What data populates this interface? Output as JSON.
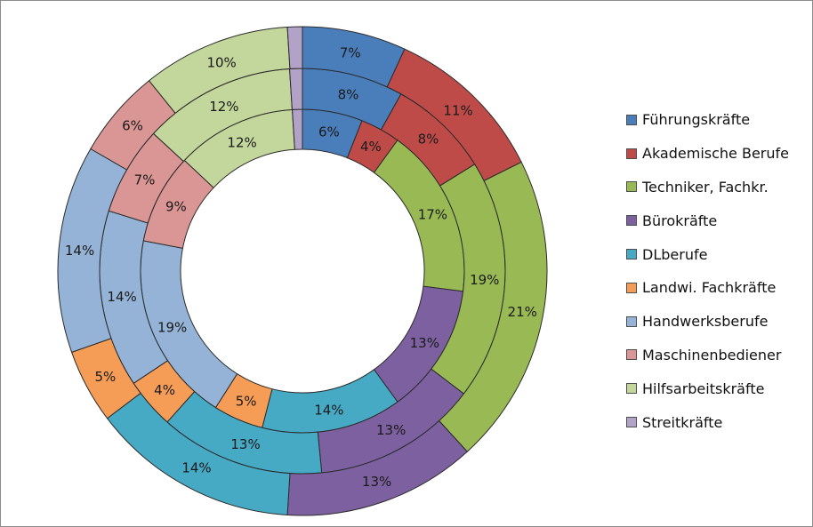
{
  "chart_data": {
    "type": "donut",
    "rings": [
      {
        "ring": "inner",
        "values": [
          6,
          4,
          17,
          13,
          14,
          5,
          19,
          9,
          12,
          1
        ]
      },
      {
        "ring": "middle",
        "values": [
          8,
          8,
          19,
          13,
          13,
          4,
          14,
          7,
          12,
          1
        ]
      },
      {
        "ring": "outer",
        "values": [
          7,
          11,
          21,
          13,
          14,
          5,
          14,
          6,
          10,
          1
        ]
      }
    ],
    "categories": [
      "Führungskräfte",
      "Akademische Berufe",
      "Techniker, Fachkr.",
      "Bürokräfte",
      "DLberufe",
      "Landwi. Fachkräfte",
      "Handwerksberufe",
      "Maschinenbediener",
      "Hilfsarbeitskräfte",
      "Streitkräfte"
    ],
    "colors": [
      "#4a7ebb",
      "#be4b48",
      "#98b954",
      "#7d60a0",
      "#46aac5",
      "#f59d56",
      "#95b3d7",
      "#d99694",
      "#c3d69b",
      "#b3a2c7"
    ],
    "labels": {
      "inner": [
        "6%",
        "4%",
        "17%",
        "13%",
        "14%",
        "5%",
        "19%",
        "9%",
        "12%",
        ""
      ],
      "middle": [
        "8%",
        "8%",
        "19%",
        "13%",
        "13%",
        "4%",
        "14%",
        "7%",
        "12%",
        ""
      ],
      "outer": [
        "7%",
        "11%",
        "21%",
        "13%",
        "14%",
        "5%",
        "14%",
        "6%",
        "10%",
        ""
      ]
    },
    "legend_position": "right"
  }
}
